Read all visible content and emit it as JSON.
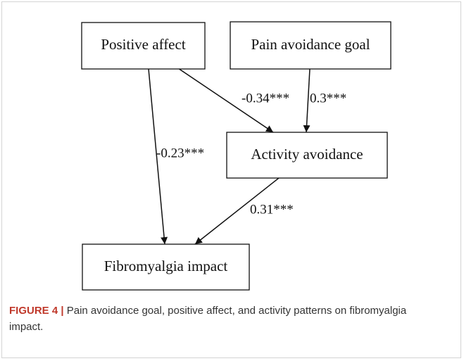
{
  "nodes": [
    {
      "label": "Positive affect"
    },
    {
      "label": "Pain avoidance goal"
    },
    {
      "label": "Activity avoidance"
    },
    {
      "label": "Fibromyalgia impact"
    }
  ],
  "edges": [
    {
      "label": "-0.23***"
    },
    {
      "label": "-0.34***"
    },
    {
      "label": "0.3***"
    },
    {
      "label": "0.31***"
    }
  ],
  "caption": {
    "label": "FIGURE 4 |",
    "text": "Pain avoidance goal, positive affect, and activity patterns on fibromyalgia impact."
  }
}
